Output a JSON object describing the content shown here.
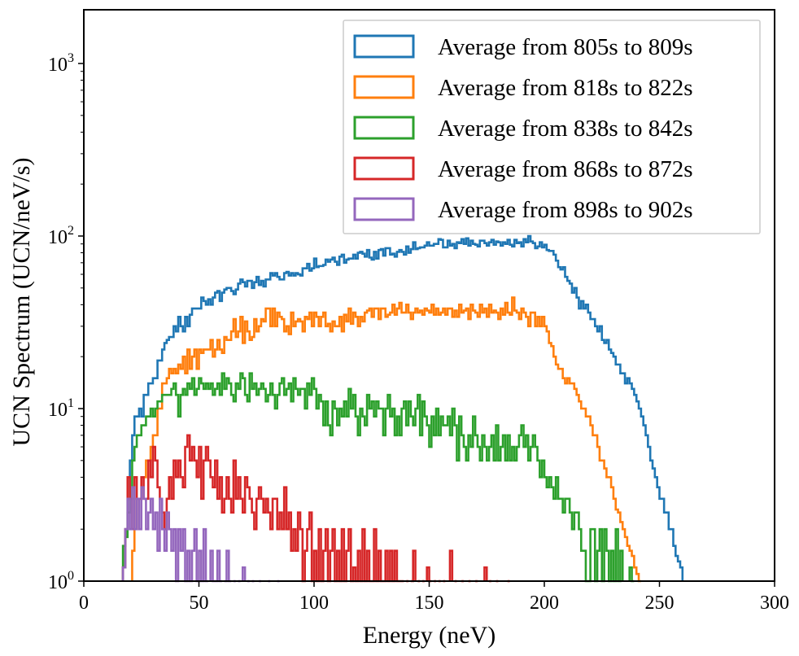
{
  "chart_data": {
    "type": "line",
    "style": "step-histogram",
    "title": "",
    "xlabel": "Energy (neV)",
    "ylabel": "UCN Spectrum (UCN/neV/s)",
    "xlim": [
      0,
      300
    ],
    "ylim": [
      1,
      2000
    ],
    "yscale": "log",
    "xticks": [
      0,
      50,
      100,
      150,
      200,
      250,
      300
    ],
    "xtick_labels": [
      "0",
      "50",
      "100",
      "150",
      "200",
      "250",
      "300"
    ],
    "yticks": [
      1,
      10,
      100,
      1000
    ],
    "ytick_labels": [
      {
        "base": "10",
        "exp": "0"
      },
      {
        "base": "10",
        "exp": "1"
      },
      {
        "base": "10",
        "exp": "2"
      },
      {
        "base": "10",
        "exp": "3"
      }
    ],
    "legend_position": "top-right",
    "bin_width": 1,
    "x_start": 17,
    "series": [
      {
        "name": "Average from 805s to 809s",
        "color": "#1f77b4",
        "values": [
          1.2,
          2.0,
          3.0,
          5.0,
          7.0,
          9.0,
          9.0,
          10.0,
          9.0,
          12.0,
          12.0,
          14.0,
          14.0,
          15.0,
          15.0,
          19.0,
          19.0,
          22.0,
          24.0,
          25.0,
          26.0,
          26.0,
          30.0,
          28.0,
          34.0,
          30.0,
          28.0,
          34.0,
          30.0,
          35.0,
          38.0,
          38.0,
          38.0,
          38.0,
          44.0,
          42.0,
          40.0,
          43.0,
          40.0,
          44.0,
          47.0,
          48.0,
          42.0,
          47.0,
          49.0,
          50.0,
          50.0,
          48.0,
          46.0,
          49.0,
          53.0,
          56.0,
          54.0,
          51.0,
          55.0,
          55.0,
          50.0,
          54.0,
          58.0,
          52.0,
          55.0,
          51.0,
          56.0,
          56.0,
          61.0,
          59.0,
          61.0,
          58.0,
          56.0,
          56.0,
          61.0,
          62.0,
          59.0,
          61.0,
          59.0,
          61.0,
          60.0,
          59.0,
          65.0,
          65.0,
          69.0,
          63.0,
          65.0,
          74.0,
          66.0,
          67.0,
          67.0,
          68.0,
          73.0,
          71.0,
          73.0,
          75.0,
          71.0,
          68.0,
          76.0,
          78.0,
          70.0,
          73.0,
          74.0,
          74.0,
          78.0,
          74.0,
          80.0,
          81.0,
          79.0,
          76.0,
          83.0,
          75.0,
          73.0,
          81.0,
          74.0,
          83.0,
          84.0,
          77.0,
          85.0,
          85.0,
          78.0,
          79.0,
          76.0,
          81.0,
          83.0,
          81.0,
          78.0,
          87.0,
          80.0,
          84.0,
          92.0,
          84.0,
          85.0,
          86.0,
          86.0,
          88.0,
          92.0,
          88.0,
          88.0,
          90.0,
          90.0,
          96.0,
          95.0,
          86.0,
          86.0,
          94.0,
          88.0,
          90.0,
          85.0,
          92.0,
          91.0,
          96.0,
          90.0,
          97.0,
          88.0,
          94.0,
          90.0,
          89.0,
          87.0,
          94.0,
          94.0,
          91.0,
          88.0,
          92.0,
          95.0,
          89.0,
          93.0,
          92.0,
          88.0,
          92.0,
          90.0,
          95.0,
          89.0,
          87.0,
          95.0,
          91.0,
          92.0,
          87.0,
          96.0,
          92.0,
          100.0,
          93.0,
          91.0,
          85.0,
          87.0,
          92.0,
          86.0,
          89.0,
          83.0,
          82.0,
          82.0,
          78.0,
          72.0,
          66.0,
          64.0,
          66.0,
          58.0,
          55.0,
          53.0,
          47.0,
          50.0,
          44.0,
          38.0,
          42.0,
          38.0,
          40.0,
          36.0,
          33.0,
          33.0,
          30.0,
          28.0,
          30.0,
          25.0,
          24.0,
          25.0,
          22.0,
          21.0,
          20.0,
          18.0,
          18.0,
          16.0,
          16.0,
          14.0,
          15.0,
          14.0,
          13.0,
          12.0,
          11.0,
          10.0,
          9.0,
          8.0,
          7.0,
          6.0,
          5.0,
          4.5,
          4.0,
          3.5,
          3.0,
          3.0,
          2.5,
          2.5,
          2.0,
          2.0,
          1.6,
          1.4,
          1.3,
          1.2
        ]
      },
      {
        "name": "Average from 818s to 822s",
        "color": "#ff7f0e",
        "values": [
          null,
          null,
          null,
          null,
          1.5,
          2.0,
          3.0,
          3.0,
          4.0,
          4.0,
          5.0,
          5.0,
          6.0,
          7.0,
          7.0,
          10.0,
          10.0,
          14.0,
          14.0,
          15.0,
          17.0,
          16.0,
          17.0,
          16.0,
          18.0,
          17.0,
          20.0,
          16.0,
          22.0,
          17.0,
          20.0,
          22.0,
          17.0,
          22.0,
          21.0,
          22.0,
          22.0,
          22.0,
          25.0,
          20.0,
          22.0,
          25.0,
          22.0,
          21.0,
          26.0,
          25.0,
          25.0,
          28.0,
          33.0,
          26.0,
          28.0,
          34.0,
          24.0,
          32.0,
          28.0,
          25.0,
          26.0,
          33.0,
          28.0,
          30.0,
          33.0,
          32.0,
          38.0,
          38.0,
          30.0,
          38.0,
          30.0,
          36.0,
          34.0,
          33.0,
          28.0,
          30.0,
          27.0,
          36.0,
          30.0,
          32.0,
          33.0,
          32.0,
          28.0,
          34.0,
          33.0,
          36.0,
          30.0,
          36.0,
          34.0,
          30.0,
          34.0,
          36.0,
          30.0,
          31.0,
          28.0,
          32.0,
          30.0,
          30.0,
          34.0,
          28.0,
          35.0,
          32.0,
          38.0,
          31.0,
          36.0,
          34.0,
          30.0,
          34.0,
          32.0,
          36.0,
          37.0,
          38.0,
          34.0,
          38.0,
          38.0,
          33.0,
          38.0,
          38.0,
          34.0,
          35.0,
          36.0,
          40.0,
          35.0,
          38.0,
          41.0,
          36.0,
          36.0,
          40.0,
          36.0,
          33.0,
          36.0,
          38.0,
          36.0,
          37.0,
          35.0,
          38.0,
          37.0,
          36.0,
          40.0,
          35.0,
          38.0,
          35.0,
          36.0,
          38.0,
          35.0,
          38.0,
          38.0,
          34.0,
          37.0,
          34.0,
          40.0,
          36.0,
          37.0,
          38.0,
          33.0,
          40.0,
          37.0,
          36.0,
          34.0,
          40.0,
          36.0,
          38.0,
          34.0,
          40.0,
          36.0,
          37.0,
          36.0,
          33.0,
          38.0,
          35.0,
          41.0,
          36.0,
          35.0,
          44.0,
          37.0,
          36.0,
          33.0,
          38.0,
          36.0,
          34.0,
          30.0,
          36.0,
          36.0,
          30.0,
          34.0,
          30.0,
          34.0,
          30.0,
          28.0,
          24.0,
          23.0,
          20.0,
          18.0,
          17.0,
          17.0,
          15.0,
          14.0,
          15.0,
          14.0,
          14.0,
          13.0,
          12.0,
          11.0,
          10.0,
          10.0,
          9.0,
          9.0,
          8.0,
          7.0,
          7.0,
          6.0,
          5.0,
          5.0,
          4.5,
          4.0,
          4.0,
          3.5,
          3.0,
          2.6,
          2.5,
          2.2,
          2.0,
          1.8,
          1.6,
          1.5,
          1.4,
          1.2,
          1.1,
          1.0
        ]
      },
      {
        "name": "Average from 838s to 842s",
        "color": "#2ca02c",
        "values": [
          1.6,
          1.8,
          2.5,
          3.0,
          5.0,
          6.0,
          7.0,
          7.0,
          8.0,
          8.0,
          9.0,
          9.0,
          10.0,
          9.0,
          10.0,
          11.0,
          11.0,
          12.0,
          12.0,
          12.0,
          12.0,
          13.0,
          14.0,
          12.0,
          9.0,
          12.0,
          13.0,
          12.0,
          14.0,
          13.0,
          15.0,
          12.0,
          13.0,
          15.0,
          14.0,
          13.0,
          14.0,
          13.0,
          14.0,
          12.0,
          13.0,
          14.0,
          12.0,
          16.0,
          13.0,
          15.0,
          14.0,
          12.0,
          11.0,
          14.0,
          13.0,
          16.0,
          15.0,
          12.0,
          11.0,
          16.0,
          13.0,
          14.0,
          12.0,
          13.0,
          14.0,
          13.0,
          11.0,
          12.0,
          14.0,
          12.0,
          10.0,
          12.0,
          14.0,
          15.0,
          12.0,
          13.0,
          14.0,
          11.0,
          15.0,
          13.0,
          12.0,
          13.0,
          13.0,
          10.0,
          14.0,
          12.0,
          15.0,
          13.0,
          10.0,
          12.0,
          11.0,
          8.0,
          11.0,
          8.0,
          7.0,
          11.0,
          10.0,
          8.0,
          10.0,
          9.0,
          11.0,
          9.0,
          13.0,
          10.0,
          12.0,
          9.0,
          7.0,
          10.0,
          9.0,
          8.0,
          12.0,
          10.0,
          11.0,
          9.0,
          11.0,
          10.0,
          10.0,
          7.0,
          10.0,
          12.0,
          9.0,
          10.0,
          7.0,
          9.0,
          7.0,
          10.0,
          11.0,
          8.0,
          11.0,
          9.0,
          8.0,
          10.0,
          12.0,
          7.0,
          11.0,
          9.0,
          8.0,
          6.0,
          9.0,
          7.0,
          10.0,
          7.0,
          9.0,
          8.0,
          8.0,
          9.0,
          7.0,
          10.0,
          8.0,
          5.0,
          9.0,
          7.0,
          6.0,
          5.0,
          7.0,
          6.0,
          9.0,
          7.0,
          6.0,
          5.0,
          7.0,
          6.0,
          5.0,
          6.0,
          7.0,
          5.0,
          8.0,
          5.0,
          6.0,
          7.0,
          5.0,
          7.0,
          5.0,
          6.0,
          5.0,
          6.0,
          7.0,
          8.0,
          6.0,
          7.0,
          5.0,
          6.0,
          7.0,
          6.0,
          5.0,
          4.0,
          5.0,
          4.0,
          3.5,
          4.0,
          3.5,
          3.0,
          4.0,
          3.0,
          3.0,
          2.5,
          3.0,
          3.0,
          2.5,
          2.0,
          2.5,
          2.5,
          2.0,
          1.5,
          1.5,
          1.0,
          1.0,
          2.0,
          2.0,
          1.0,
          1.5,
          2.0,
          1.0,
          2.0,
          1.5,
          1.0,
          1.5,
          1.0,
          2.0,
          1.0,
          1.5,
          null,
          null,
          null,
          1.2,
          1.0
        ]
      },
      {
        "name": "Average from 868s to 872s",
        "color": "#d62728",
        "values": [
          1.2,
          2.0,
          4.0,
          3.0,
          2.0,
          4.0,
          3.0,
          3.0,
          4.0,
          3.0,
          3.0,
          5.0,
          4.0,
          6.0,
          5.0,
          3.5,
          3.0,
          2.5,
          2.0,
          3.0,
          4.0,
          3.0,
          5.0,
          4.0,
          5.0,
          4.0,
          3.5,
          6.0,
          7.0,
          5.0,
          6.0,
          5.0,
          4.0,
          6.0,
          3.0,
          5.0,
          6.0,
          5.0,
          4.0,
          3.5,
          5.0,
          3.0,
          4.0,
          2.5,
          3.0,
          4.0,
          3.0,
          2.5,
          5.0,
          3.0,
          4.0,
          3.0,
          2.5,
          4.0,
          3.5,
          3.0,
          2.5,
          2.0,
          3.0,
          3.5,
          3.0,
          2.5,
          3.0,
          2.5,
          2.0,
          3.0,
          3.0,
          2.0,
          2.5,
          2.0,
          3.5,
          2.0,
          2.5,
          1.5,
          2.0,
          1.5,
          2.5,
          2.0,
          1.0,
          1.5,
          2.0,
          2.5,
          1.0,
          1.5,
          1.0,
          2.0,
          1.0,
          1.5,
          2.0,
          1.0,
          1.5,
          2.0,
          1.0,
          1.5,
          1.0,
          2.0,
          1.0,
          1.5,
          2.0,
          1.0,
          1.2,
          1.0,
          1.5,
          1.0,
          2.0,
          1.0,
          1.5,
          1.0,
          1.0,
          2.0,
          1.0,
          1.5,
          1.0,
          1.0,
          1.5,
          1.0,
          1.5,
          1.0,
          1.5,
          1.0,
          1.0,
          1.0,
          null,
          1.0,
          null,
          1.0,
          1.5,
          null,
          1.0,
          null,
          1.0,
          null,
          1.2,
          1.0,
          null,
          1.0,
          null,
          1.0,
          null,
          1.0,
          null,
          null,
          1.5,
          null,
          1.0,
          null,
          null,
          1.0,
          null,
          null,
          1.0,
          null,
          null,
          1.0,
          null,
          null,
          null,
          1.2,
          null,
          1.0,
          null,
          null,
          1.0,
          null,
          null,
          null,
          null,
          1.0
        ]
      },
      {
        "name": "Average from 898s to 902s",
        "color": "#9467bd",
        "values": [
          1.2,
          2.0,
          3.0,
          2.0,
          3.5,
          2.0,
          3.0,
          2.0,
          3.5,
          3.0,
          2.0,
          2.5,
          3.0,
          2.0,
          2.5,
          1.5,
          3.0,
          2.0,
          1.5,
          2.5,
          2.0,
          1.5,
          2.0,
          1.0,
          2.0,
          1.5,
          2.0,
          1.0,
          1.5,
          1.0,
          1.5,
          2.0,
          1.0,
          1.5,
          1.0,
          2.0,
          1.0,
          null,
          1.5,
          1.0,
          1.0,
          1.5,
          1.0,
          null,
          1.0,
          1.5,
          1.0,
          null,
          1.0,
          null,
          1.0,
          null,
          1.2,
          null,
          1.0,
          null,
          1.0,
          null,
          null,
          1.0,
          null,
          null,
          null,
          1.0,
          null,
          null,
          null,
          1.0
        ]
      }
    ]
  }
}
